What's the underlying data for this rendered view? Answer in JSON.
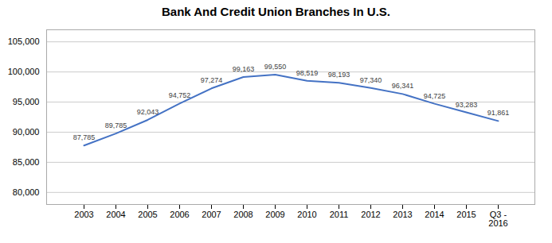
{
  "chart_data": {
    "type": "line",
    "title": "Bank And Credit  Union Branches In U.S.",
    "categories": [
      "2003",
      "2004",
      "2005",
      "2006",
      "2007",
      "2008",
      "2009",
      "2010",
      "2011",
      "2012",
      "2013",
      "2014",
      "2015",
      "Q3 -\n2016"
    ],
    "values": [
      87785,
      89785,
      92043,
      94752,
      97274,
      99163,
      99550,
      98519,
      98193,
      97340,
      96341,
      94725,
      93283,
      91861
    ],
    "value_labels": [
      "87,785",
      "89,785",
      "92,043",
      "94,752",
      "97,274",
      "99,163",
      "99,550",
      "98,519",
      "98,193",
      "97,340",
      "96,341",
      "94,725",
      "93,283",
      "91,861"
    ],
    "data_labels": true,
    "color": "#4472C4",
    "ylim": [
      78000,
      107000
    ],
    "yticks": [
      {
        "value": 80000,
        "label": "80,000"
      },
      {
        "value": 85000,
        "label": "85,000"
      },
      {
        "value": 90000,
        "label": "90,000"
      },
      {
        "value": 95000,
        "label": "95,000"
      },
      {
        "value": 100000,
        "label": "100,000"
      },
      {
        "value": 105000,
        "label": "105,000"
      }
    ],
    "grid": true
  }
}
